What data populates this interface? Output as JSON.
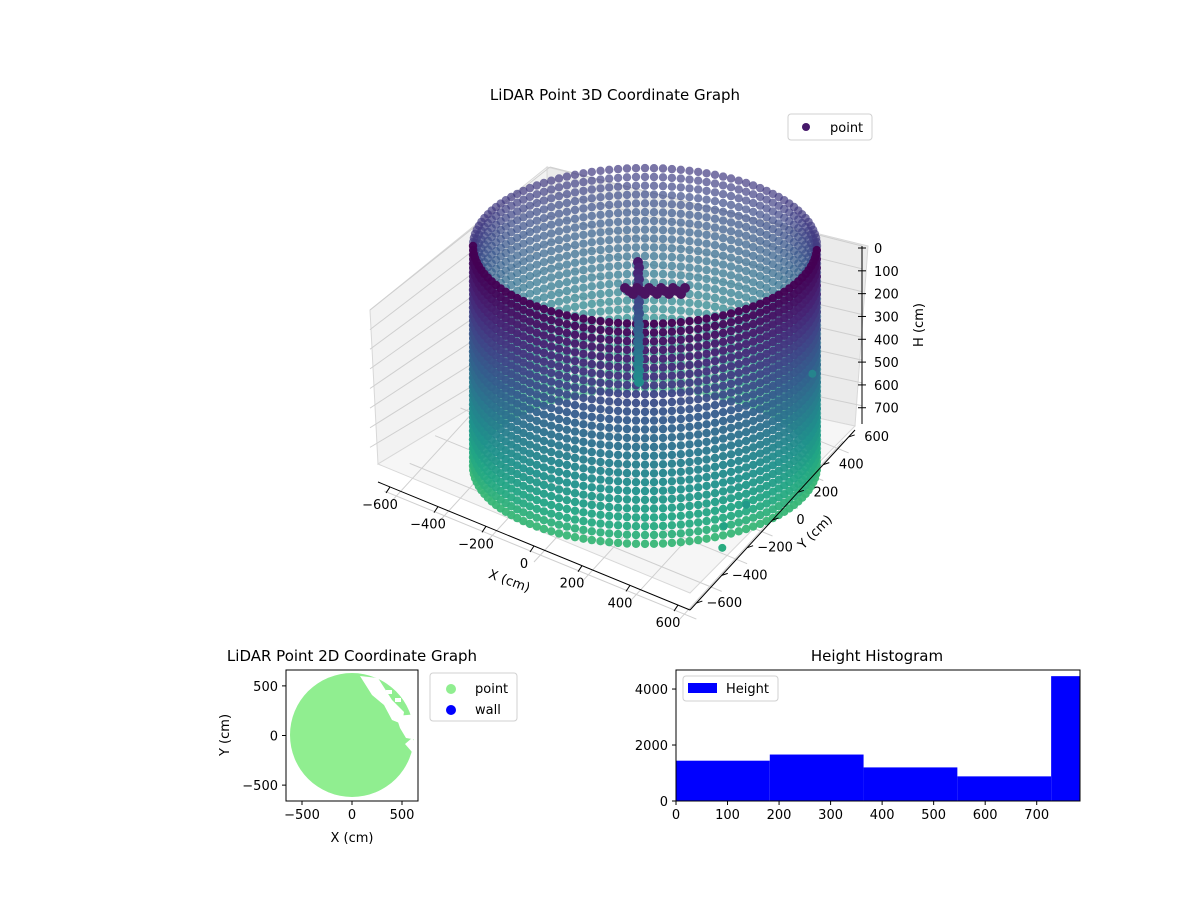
{
  "chart_data": [
    {
      "type": "scatter",
      "projection": "3d",
      "title": "LiDAR Point 3D Coordinate Graph",
      "xlabel": "X (cm)",
      "ylabel": "Y (cm)",
      "zlabel": "H (cm)",
      "xlim": [
        -650,
        650
      ],
      "ylim": [
        -650,
        650
      ],
      "zlim": [
        780,
        0
      ],
      "z_inverted": true,
      "xticks": [
        -600,
        -400,
        -200,
        0,
        200,
        400,
        600
      ],
      "yticks": [
        -600,
        -400,
        -200,
        0,
        200,
        400,
        600
      ],
      "zticks": [
        0,
        100,
        200,
        300,
        400,
        500,
        600,
        700
      ],
      "grid": true,
      "colormap": "viridis",
      "legend": {
        "placement": "upper right",
        "entries": [
          "point"
        ]
      },
      "series": [
        {
          "name": "point",
          "color": "#46196a",
          "shape": "cylindrical wall of points",
          "radius": 600,
          "height_range": [
            0,
            740
          ],
          "extra_points": [
            {
              "x": 520,
              "y": 560,
              "h": 500
            },
            {
              "x": 620,
              "y": -150,
              "h": 600
            },
            {
              "x": 580,
              "y": -250,
              "h": 650
            },
            {
              "x": 610,
              "y": -320,
              "h": 690
            }
          ]
        }
      ]
    },
    {
      "type": "scatter",
      "title": "LiDAR Point 2D Coordinate Graph",
      "xlabel": "X (cm)",
      "ylabel": "Y (cm)",
      "xlim": [
        -660,
        660
      ],
      "ylim": [
        -660,
        660
      ],
      "xticks": [
        -500,
        0,
        500
      ],
      "yticks": [
        -500,
        0,
        500
      ],
      "legend": {
        "placement": "outside right",
        "entries": [
          "point",
          "wall"
        ]
      },
      "series": [
        {
          "name": "point",
          "color": "#90ee90",
          "shape": "filled disc",
          "radius": 620
        },
        {
          "name": "wall",
          "color": "#0000ff"
        }
      ]
    },
    {
      "type": "bar",
      "title": "Height Histogram",
      "xlabel": "",
      "ylabel": "",
      "bin_edges": [
        0,
        182,
        364,
        546,
        728,
        784
      ],
      "values": [
        1440,
        1660,
        1200,
        880,
        4460
      ],
      "xlim": [
        0,
        784
      ],
      "ylim": [
        0,
        4680
      ],
      "xticks": [
        0,
        100,
        200,
        300,
        400,
        500,
        600,
        700
      ],
      "yticks": [
        0,
        2000,
        4000
      ],
      "color": "#0000ff",
      "legend": {
        "placement": "upper left",
        "entries": [
          "Height"
        ]
      }
    }
  ]
}
